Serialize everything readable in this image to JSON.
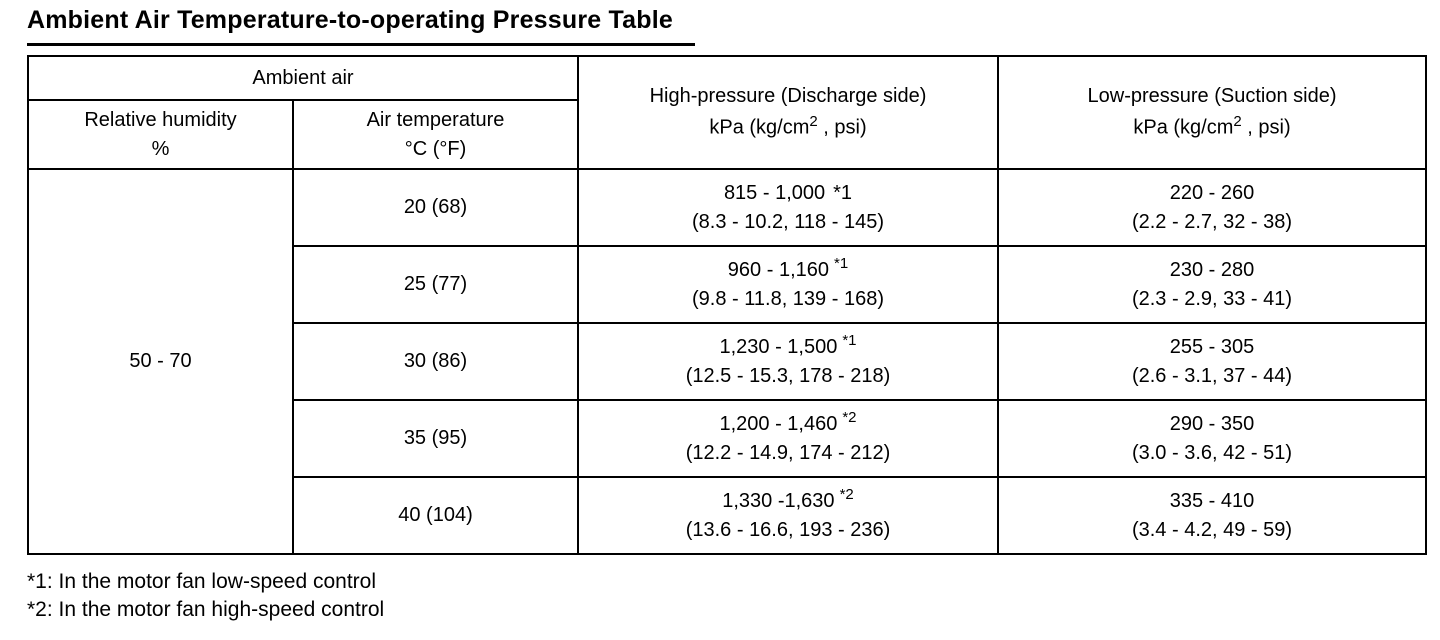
{
  "page": {
    "title": "Ambient Air Temperature-to-operating Pressure Table"
  },
  "table": {
    "headers": {
      "ambient_air": "Ambient air",
      "relative_humidity_line1": "Relative humidity",
      "relative_humidity_line2": "%",
      "air_temperature_line1": "Air temperature",
      "air_temperature_line2": "°C (°F)",
      "high_pressure_title": "High-pressure (Discharge side)",
      "low_pressure_title": "Low-pressure (Suction side)",
      "unit_prefix": "kPa (kg/cm",
      "unit_sup": "2",
      "unit_suffix": " , psi)"
    },
    "relative_humidity_value": "50 - 70",
    "rows": [
      {
        "air_temp": "20 (68)",
        "high_kpa": "815 - 1,000",
        "high_marker": "*1",
        "high_detail": "(8.3 - 10.2, 118 - 145)",
        "low_kpa": "220 - 260",
        "low_detail": "(2.2 - 2.7, 32 - 38)"
      },
      {
        "air_temp": "25 (77)",
        "high_kpa": "960 - 1,160",
        "high_marker": "*1",
        "high_detail": "(9.8 - 11.8, 139 - 168)",
        "low_kpa": "230 - 280",
        "low_detail": "(2.3 - 2.9, 33 - 41)"
      },
      {
        "air_temp": "30 (86)",
        "high_kpa": "1,230 - 1,500",
        "high_marker": "*1",
        "high_detail": "(12.5 - 15.3, 178 - 218)",
        "low_kpa": "255 - 305",
        "low_detail": "(2.6 - 3.1, 37 - 44)"
      },
      {
        "air_temp": "35 (95)",
        "high_kpa": "1,200 - 1,460",
        "high_marker": "*2",
        "high_detail": "(12.2 - 14.9, 174 - 212)",
        "low_kpa": "290 - 350",
        "low_detail": "(3.0 - 3.6, 42 - 51)"
      },
      {
        "air_temp": "40 (104)",
        "high_kpa": "1,330 -1,630",
        "high_marker": "*2",
        "high_detail": "(13.6 - 16.6, 193 - 236)",
        "low_kpa": "335 - 410",
        "low_detail": "(3.4 - 4.2, 49 - 59)"
      }
    ]
  },
  "footnotes": [
    "*1: In the motor fan low-speed control",
    "*2: In the motor fan high-speed control"
  ]
}
